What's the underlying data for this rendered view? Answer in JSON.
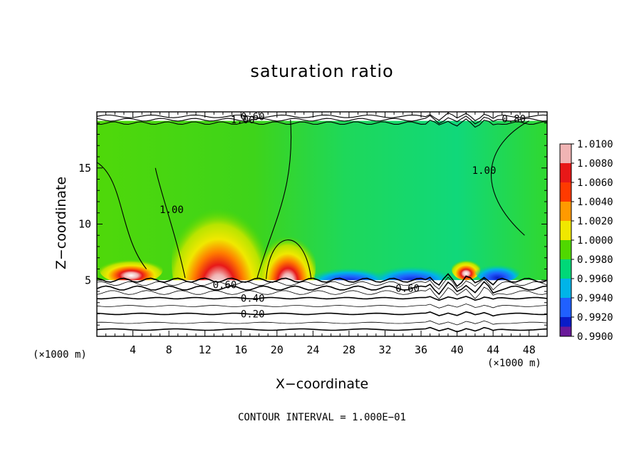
{
  "chart_data": {
    "type": "heatmap",
    "title": "saturation ratio",
    "xlabel": "X−coordinate",
    "ylabel": "Z−coordinate",
    "x_unit": "(×1000 m)",
    "z_unit": "(×1000 m)",
    "xlim": [
      0,
      50
    ],
    "ylim": [
      0,
      20
    ],
    "x_ticks": [
      4,
      8,
      12,
      16,
      20,
      24,
      28,
      32,
      36,
      40,
      44,
      48
    ],
    "y_ticks": [
      5,
      10,
      15
    ],
    "colorbar": {
      "levels": [
        1.01,
        1.008,
        1.006,
        1.004,
        1.002,
        1.0,
        0.998,
        0.996,
        0.994,
        0.992,
        0.99
      ],
      "labels": [
        "1.0100",
        "1.0080",
        "1.0060",
        "1.0040",
        "1.0020",
        "1.0000",
        "0.9980",
        "0.9960",
        "0.9940",
        "0.9920",
        "0.9900"
      ],
      "colors": [
        "#f0b4b4",
        "#e81818",
        "#ff3a00",
        "#ff9a00",
        "#f0e800",
        "#50d800",
        "#00d878",
        "#00b4e8",
        "#2060ff",
        "#0a1cc8",
        "#6a1a9a"
      ]
    },
    "contour_labels": [
      {
        "text": "0.20",
        "x": 17.3,
        "z": 2.0
      },
      {
        "text": "0.40",
        "x": 17.3,
        "z": 3.4
      },
      {
        "text": "0.60",
        "x": 14.2,
        "z": 4.6
      },
      {
        "text": "0.60",
        "x": 34.5,
        "z": 4.3
      },
      {
        "text": "0.80",
        "x": 46.3,
        "z": 19.4
      },
      {
        "text": "1.00",
        "x": 8.3,
        "z": 11.3
      },
      {
        "text": "1.00",
        "x": 43.0,
        "z": 14.8
      },
      {
        "text": "1.00",
        "x": 16.2,
        "z": 19.3
      },
      {
        "text": "0.60",
        "x": 17.3,
        "z": 19.6
      }
    ],
    "regions": [
      {
        "kind": "supersat",
        "x": 13.5,
        "z": 6.6,
        "rx": 5.2,
        "rz": 6.0
      },
      {
        "kind": "supersat",
        "x": 21.2,
        "z": 6.2,
        "rx": 3.1,
        "rz": 3.4
      },
      {
        "kind": "supersat",
        "x": 3.8,
        "z": 5.9,
        "rx": 3.5,
        "rz": 1.2
      },
      {
        "kind": "supersat",
        "x": 41.0,
        "z": 6.0,
        "rx": 1.6,
        "rz": 1.0
      },
      {
        "kind": "subsat",
        "x": 28.0,
        "z": 5.5,
        "rx": 4.0,
        "rz": 1.0
      },
      {
        "kind": "subsat",
        "x": 35.0,
        "z": 5.6,
        "rx": 4.0,
        "rz": 1.1
      },
      {
        "kind": "subsat",
        "x": 44.5,
        "z": 5.8,
        "rx": 2.5,
        "rz": 1.0
      }
    ],
    "contour_interval_text": "CONTOUR INTERVAL = 1.000E−01"
  }
}
